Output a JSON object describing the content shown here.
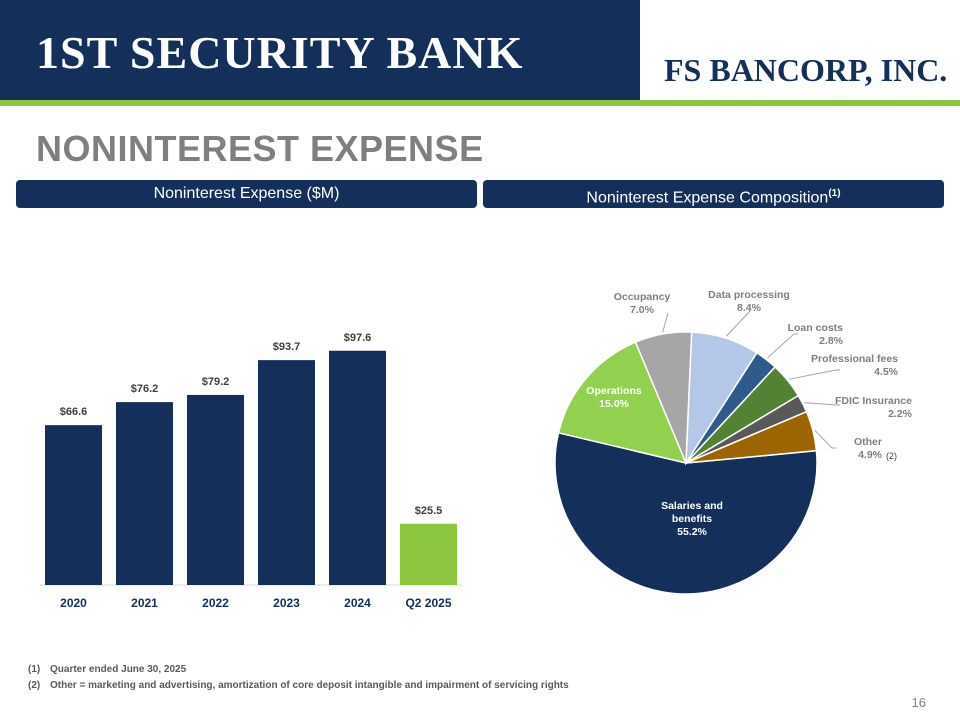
{
  "header": {
    "left_logo": "1ST SECURITY BANK",
    "right_logo": "FS BANCORP, INC."
  },
  "title": "NONINTEREST EXPENSE",
  "sections": {
    "left_heading": "Noninterest Expense ($M)",
    "right_heading": "Noninterest Expense Composition",
    "right_heading_note": "(1)"
  },
  "colors": {
    "navy": "#14305a",
    "green": "#8cc63f",
    "gray_title": "#7f7f7f"
  },
  "chart_data": [
    {
      "type": "bar",
      "categories": [
        "2020",
        "2021",
        "2022",
        "2023",
        "2024",
        "Q2 2025"
      ],
      "values": [
        66.6,
        76.2,
        79.2,
        93.7,
        97.6,
        25.5
      ],
      "data_labels": [
        "$66.6",
        "$76.2",
        "$79.2",
        "$93.7",
        "$97.6",
        "$25.5"
      ],
      "bar_colors": [
        "#14305a",
        "#14305a",
        "#14305a",
        "#14305a",
        "#14305a",
        "#8cc63f"
      ],
      "ylim": [
        0,
        100
      ],
      "grid": false,
      "legend": "none"
    },
    {
      "type": "pie",
      "slices": [
        {
          "label": "Salaries and benefits",
          "value": 55.2,
          "label_text": "55.2%",
          "color": "#14305a"
        },
        {
          "label": "Operations",
          "value": 15.0,
          "label_text": "15.0%",
          "color": "#92d050"
        },
        {
          "label": "Occupancy",
          "value": 7.0,
          "label_text": "7.0%",
          "color": "#a6a6a6"
        },
        {
          "label": "Data processing",
          "value": 8.4,
          "label_text": "8.4%",
          "color": "#b4c7e7"
        },
        {
          "label": "Loan costs",
          "value": 2.8,
          "label_text": "2.8%",
          "color": "#2e5a8c"
        },
        {
          "label": "Professional fees",
          "value": 4.5,
          "label_text": "4.5%",
          "color": "#548235"
        },
        {
          "label": "FDIC Insurance",
          "value": 2.2,
          "label_text": "2.2%",
          "color": "#595959"
        },
        {
          "label": "Other",
          "value": 4.9,
          "label_text": "4.9%",
          "color": "#9c6500",
          "note": "(2)"
        }
      ],
      "legend": "none"
    }
  ],
  "footnotes": [
    {
      "num": "(1)",
      "text": "Quarter ended  June 30, 2025"
    },
    {
      "num": "(2)",
      "text": "Other = marketing and advertising, amortization of core deposit intangible and impairment of servicing rights"
    }
  ],
  "page_number": "16"
}
